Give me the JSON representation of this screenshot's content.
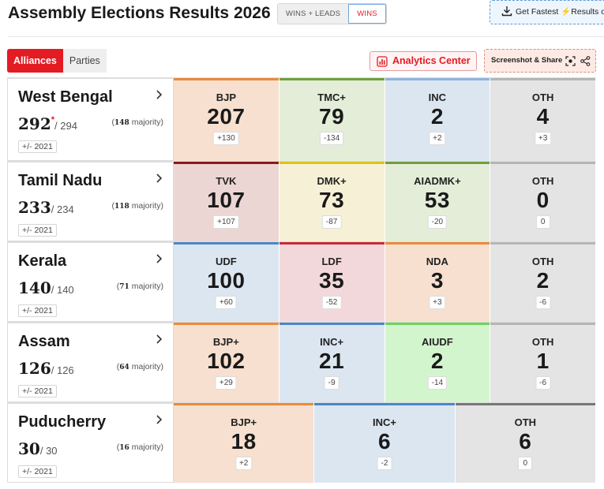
{
  "header": {
    "title": "Assembly Elections Results 2026",
    "toggle": [
      {
        "label": "WINS + LEADS",
        "active": false
      },
      {
        "label": "WINS",
        "active": true
      }
    ],
    "fastest_prefix": "Get Fastest",
    "fastest_bolt": "⚡",
    "fastest_suffix": "Results o"
  },
  "controls": {
    "tabs": [
      {
        "label": "Alliances",
        "active": true
      },
      {
        "label": "Parties",
        "active": false
      }
    ],
    "analytics_label": "Analytics Center",
    "share_label": "Screenshot & Share"
  },
  "colors": {
    "accent": "#e31b23",
    "saffron_bg": "#f7e0cf",
    "saffron_bar": "#e98b3a",
    "green_bg": "#e4edd8",
    "green_bar": "#6fa03c",
    "blue_bg": "#dbe6f1",
    "blue_bar": "#4b86c8",
    "gray_bg": "#e4e4e4",
    "gray_bar": "#9a9a9a",
    "maroon_bg": "#ecd6d3",
    "maroon_bar": "#8b1a1a",
    "yellow_bg": "#f6f1d6",
    "yellow_bar": "#e0c21a",
    "red_bg": "#f3d8db",
    "red_bar": "#c42a3a",
    "lime_bg": "#d3f5cd",
    "lime_bar": "#6bd35a"
  },
  "states": [
    {
      "name": "West Bengal",
      "seats": "292",
      "star": "*",
      "total": "/ 294",
      "majority_num": "148",
      "majority_word": "majority",
      "compare": "+/- 2021",
      "parties": [
        {
          "name": "BJP",
          "count": "207",
          "change": "+130",
          "bg": "#f7e0cf",
          "bar": "#e98b3a"
        },
        {
          "name": "TMC+",
          "count": "79",
          "change": "-134",
          "bg": "#e4edd8",
          "bar": "#6fa03c"
        },
        {
          "name": "INC",
          "count": "2",
          "change": "+2",
          "bg": "#dbe6f1",
          "bar": "#8fb3dd"
        },
        {
          "name": "OTH",
          "count": "4",
          "change": "+3",
          "bg": "#e4e4e4",
          "bar": "#b5b5b5"
        }
      ]
    },
    {
      "name": "Tamil Nadu",
      "seats": "233",
      "star": "",
      "total": "/ 234",
      "majority_num": "118",
      "majority_word": "majority",
      "compare": "+/- 2021",
      "parties": [
        {
          "name": "TVK",
          "count": "107",
          "change": "+107",
          "bg": "#ecd6d3",
          "bar": "#8b1a1a"
        },
        {
          "name": "DMK+",
          "count": "73",
          "change": "-87",
          "bg": "#f6f1d6",
          "bar": "#e0c21a"
        },
        {
          "name": "AIADMK+",
          "count": "53",
          "change": "-20",
          "bg": "#e4edd8",
          "bar": "#6fa03c"
        },
        {
          "name": "OTH",
          "count": "0",
          "change": "0",
          "bg": "#e4e4e4",
          "bar": "#b5b5b5"
        }
      ]
    },
    {
      "name": "Kerala",
      "seats": "140",
      "star": "",
      "total": "/ 140",
      "majority_num": "71",
      "majority_word": "majority",
      "compare": "+/- 2021",
      "parties": [
        {
          "name": "UDF",
          "count": "100",
          "change": "+60",
          "bg": "#dbe6f1",
          "bar": "#4b86c8"
        },
        {
          "name": "LDF",
          "count": "35",
          "change": "-52",
          "bg": "#f3d8db",
          "bar": "#c42a3a"
        },
        {
          "name": "NDA",
          "count": "3",
          "change": "+3",
          "bg": "#f7e0cf",
          "bar": "#e98b3a"
        },
        {
          "name": "OTH",
          "count": "2",
          "change": "-6",
          "bg": "#e4e4e4",
          "bar": "#b5b5b5"
        }
      ]
    },
    {
      "name": "Assam",
      "seats": "126",
      "star": "",
      "total": "/ 126",
      "majority_num": "64",
      "majority_word": "majority",
      "compare": "+/- 2021",
      "parties": [
        {
          "name": "BJP+",
          "count": "102",
          "change": "+29",
          "bg": "#f7e0cf",
          "bar": "#e98b3a"
        },
        {
          "name": "INC+",
          "count": "21",
          "change": "-9",
          "bg": "#dbe6f1",
          "bar": "#4b86c8"
        },
        {
          "name": "AIUDF",
          "count": "2",
          "change": "-14",
          "bg": "#d3f5cd",
          "bar": "#6bd35a"
        },
        {
          "name": "OTH",
          "count": "1",
          "change": "-6",
          "bg": "#e4e4e4",
          "bar": "#b5b5b5"
        }
      ]
    },
    {
      "name": "Puducherry",
      "seats": "30",
      "star": "",
      "total": "/ 30",
      "majority_num": "16",
      "majority_word": "majority",
      "compare": "+/- 2021",
      "parties": [
        {
          "name": "BJP+",
          "count": "18",
          "change": "+2",
          "bg": "#f7e0cf",
          "bar": "#e98b3a"
        },
        {
          "name": "INC+",
          "count": "6",
          "change": "-2",
          "bg": "#dbe6f1",
          "bar": "#4b86c8"
        },
        {
          "name": "OTH",
          "count": "6",
          "change": "0",
          "bg": "#e4e4e4",
          "bar": "#777777"
        }
      ]
    }
  ]
}
